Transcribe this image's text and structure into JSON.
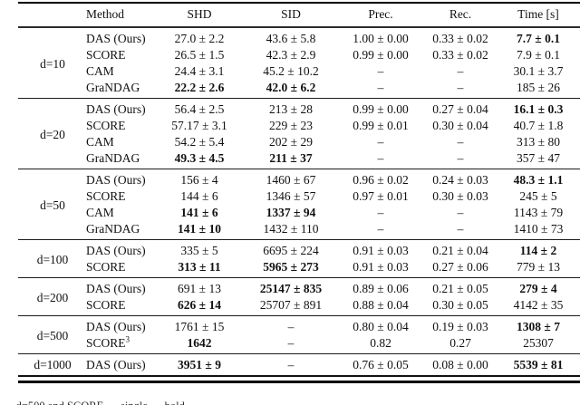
{
  "table": {
    "corner_label": "",
    "headers": [
      "Method",
      "SHD",
      "SID",
      "Prec.",
      "Rec.",
      "Time [s]"
    ],
    "groups": [
      {
        "label": "d=10",
        "rows": [
          {
            "method": "DAS (Ours)",
            "sup": "",
            "cells": [
              {
                "v": "27.0 ± 2.2",
                "b": false
              },
              {
                "v": "43.6 ± 5.8",
                "b": false
              },
              {
                "v": "1.00 ± 0.00",
                "b": false
              },
              {
                "v": "0.33 ± 0.02",
                "b": false
              },
              {
                "v": "7.7 ± 0.1",
                "b": true
              }
            ]
          },
          {
            "method": "SCORE",
            "sup": "",
            "cells": [
              {
                "v": "26.5 ± 1.5",
                "b": false
              },
              {
                "v": "42.3 ± 2.9",
                "b": false
              },
              {
                "v": "0.99 ± 0.00",
                "b": false
              },
              {
                "v": "0.33 ± 0.02",
                "b": false
              },
              {
                "v": "7.9 ± 0.1",
                "b": false
              }
            ]
          },
          {
            "method": "CAM",
            "sup": "",
            "cells": [
              {
                "v": "24.4 ± 3.1",
                "b": false
              },
              {
                "v": "45.2 ± 10.2",
                "b": false
              },
              {
                "v": "–",
                "b": false
              },
              {
                "v": "–",
                "b": false
              },
              {
                "v": "30.1 ± 3.7",
                "b": false
              }
            ]
          },
          {
            "method": "GraNDAG",
            "sup": "",
            "cells": [
              {
                "v": "22.2 ± 2.6",
                "b": true
              },
              {
                "v": "42.0 ± 6.2",
                "b": true
              },
              {
                "v": "–",
                "b": false
              },
              {
                "v": "–",
                "b": false
              },
              {
                "v": "185 ± 26",
                "b": false
              }
            ]
          }
        ]
      },
      {
        "label": "d=20",
        "rows": [
          {
            "method": "DAS (Ours)",
            "sup": "",
            "cells": [
              {
                "v": "56.4 ± 2.5",
                "b": false
              },
              {
                "v": "213 ± 28",
                "b": false
              },
              {
                "v": "0.99 ± 0.00",
                "b": false
              },
              {
                "v": "0.27 ± 0.04",
                "b": false
              },
              {
                "v": "16.1 ± 0.3",
                "b": true
              }
            ]
          },
          {
            "method": "SCORE",
            "sup": "",
            "cells": [
              {
                "v": "57.17 ± 3.1",
                "b": false
              },
              {
                "v": "229 ± 23",
                "b": false
              },
              {
                "v": "0.99 ± 0.01",
                "b": false
              },
              {
                "v": "0.30 ± 0.04",
                "b": false
              },
              {
                "v": "40.7 ± 1.8",
                "b": false
              }
            ]
          },
          {
            "method": "CAM",
            "sup": "",
            "cells": [
              {
                "v": "54.2 ± 5.4",
                "b": false
              },
              {
                "v": "202 ± 29",
                "b": false
              },
              {
                "v": "–",
                "b": false
              },
              {
                "v": "–",
                "b": false
              },
              {
                "v": "313 ± 80",
                "b": false
              }
            ]
          },
          {
            "method": "GraNDAG",
            "sup": "",
            "cells": [
              {
                "v": "49.3 ± 4.5",
                "b": true
              },
              {
                "v": "211 ± 37",
                "b": true
              },
              {
                "v": "–",
                "b": false
              },
              {
                "v": "–",
                "b": false
              },
              {
                "v": "357 ± 47",
                "b": false
              }
            ]
          }
        ]
      },
      {
        "label": "d=50",
        "rows": [
          {
            "method": "DAS (Ours)",
            "sup": "",
            "cells": [
              {
                "v": "156 ± 4",
                "b": false
              },
              {
                "v": "1460 ± 67",
                "b": false
              },
              {
                "v": "0.96 ± 0.02",
                "b": false
              },
              {
                "v": "0.24 ± 0.03",
                "b": false
              },
              {
                "v": "48.3 ± 1.1",
                "b": true
              }
            ]
          },
          {
            "method": "SCORE",
            "sup": "",
            "cells": [
              {
                "v": "144 ± 6",
                "b": false
              },
              {
                "v": "1346 ± 57",
                "b": false
              },
              {
                "v": "0.97 ± 0.01",
                "b": false
              },
              {
                "v": "0.30 ± 0.03",
                "b": false
              },
              {
                "v": "245 ± 5",
                "b": false
              }
            ]
          },
          {
            "method": "CAM",
            "sup": "",
            "cells": [
              {
                "v": "141 ± 6",
                "b": true
              },
              {
                "v": "1337 ± 94",
                "b": true
              },
              {
                "v": "–",
                "b": false
              },
              {
                "v": "–",
                "b": false
              },
              {
                "v": "1143 ± 79",
                "b": false
              }
            ]
          },
          {
            "method": "GraNDAG",
            "sup": "",
            "cells": [
              {
                "v": "141 ± 10",
                "b": true
              },
              {
                "v": "1432 ± 110",
                "b": false
              },
              {
                "v": "–",
                "b": false
              },
              {
                "v": "–",
                "b": false
              },
              {
                "v": "1410 ± 73",
                "b": false
              }
            ]
          }
        ]
      },
      {
        "label": "d=100",
        "rows": [
          {
            "method": "DAS (Ours)",
            "sup": "",
            "cells": [
              {
                "v": "335 ± 5",
                "b": false
              },
              {
                "v": "6695 ± 224",
                "b": false
              },
              {
                "v": "0.91 ± 0.03",
                "b": false
              },
              {
                "v": "0.21 ± 0.04",
                "b": false
              },
              {
                "v": "114 ± 2",
                "b": true
              }
            ]
          },
          {
            "method": "SCORE",
            "sup": "",
            "cells": [
              {
                "v": "313 ± 11",
                "b": true
              },
              {
                "v": "5965 ± 273",
                "b": true
              },
              {
                "v": "0.91 ± 0.03",
                "b": false
              },
              {
                "v": "0.27 ± 0.06",
                "b": false
              },
              {
                "v": "779 ± 13",
                "b": false
              }
            ]
          }
        ]
      },
      {
        "label": "d=200",
        "rows": [
          {
            "method": "DAS (Ours)",
            "sup": "",
            "cells": [
              {
                "v": "691 ± 13",
                "b": false
              },
              {
                "v": "25147 ± 835",
                "b": true
              },
              {
                "v": "0.89 ± 0.06",
                "b": false
              },
              {
                "v": "0.21 ± 0.05",
                "b": false
              },
              {
                "v": "279 ± 4",
                "b": true
              }
            ]
          },
          {
            "method": "SCORE",
            "sup": "",
            "cells": [
              {
                "v": "626 ± 14",
                "b": true
              },
              {
                "v": "25707 ± 891",
                "b": false
              },
              {
                "v": "0.88 ± 0.04",
                "b": false
              },
              {
                "v": "0.30 ± 0.05",
                "b": false
              },
              {
                "v": "4142 ± 35",
                "b": false
              }
            ]
          }
        ]
      },
      {
        "label": "d=500",
        "rows": [
          {
            "method": "DAS (Ours)",
            "sup": "",
            "cells": [
              {
                "v": "1761 ± 15",
                "b": false
              },
              {
                "v": "–",
                "b": false
              },
              {
                "v": "0.80 ± 0.04",
                "b": false
              },
              {
                "v": "0.19 ± 0.03",
                "b": false
              },
              {
                "v": "1308 ± 7",
                "b": true
              }
            ]
          },
          {
            "method": "SCORE",
            "sup": "3",
            "cells": [
              {
                "v": "1642",
                "b": true
              },
              {
                "v": "–",
                "b": false
              },
              {
                "v": "0.82",
                "b": false
              },
              {
                "v": "0.27",
                "b": false
              },
              {
                "v": "25307",
                "b": false
              }
            ]
          }
        ]
      },
      {
        "label": "d=1000",
        "rows": [
          {
            "method": "DAS (Ours)",
            "sup": "",
            "cells": [
              {
                "v": "3951 ± 9",
                "b": true
              },
              {
                "v": "–",
                "b": false
              },
              {
                "v": "0.76 ± 0.05",
                "b": false
              },
              {
                "v": "0.08 ± 0.00",
                "b": false
              },
              {
                "v": "5539 ± 81",
                "b": true
              }
            ]
          }
        ]
      }
    ],
    "caption_fragment": "… d=500 and SCORE … single … bold …"
  }
}
